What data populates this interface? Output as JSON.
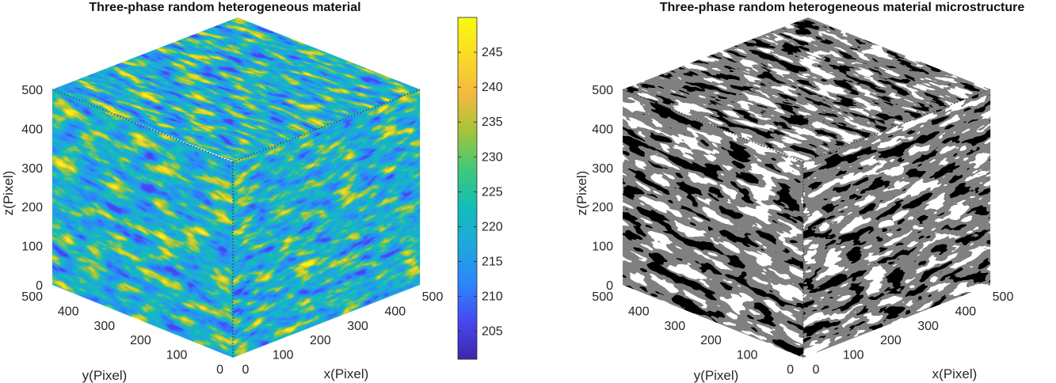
{
  "chart_data": [
    {
      "type": "heatmap",
      "subtype": "3d-volume-cube",
      "title": "Three-phase random heterogeneous material",
      "xlabel": "x(Pixel)",
      "ylabel": "y(Pixel)",
      "zlabel": "z(Pixel)",
      "xlim": [
        0,
        500
      ],
      "ylim": [
        0,
        500
      ],
      "zlim": [
        0,
        500
      ],
      "x_ticks": [
        0,
        100,
        200,
        300,
        400,
        500
      ],
      "y_ticks": [
        0,
        100,
        200,
        300,
        400,
        500
      ],
      "z_ticks": [
        0,
        100,
        200,
        300,
        400,
        500
      ],
      "colormap": "parula",
      "colorbar": {
        "range": [
          201,
          250
        ],
        "ticks": [
          205,
          210,
          215,
          220,
          225,
          230,
          235,
          240,
          245
        ],
        "colors": [
          "#3e26a8",
          "#4748f1",
          "#2c87fc",
          "#1fa7dd",
          "#12bdb9",
          "#40c878",
          "#a5c43a",
          "#f4ba3d",
          "#fadb25",
          "#f9fb0e"
        ]
      },
      "grid": false
    },
    {
      "type": "heatmap",
      "subtype": "3d-volume-cube",
      "title": "Three-phase random heterogeneous material microstructure",
      "xlabel": "x(Pixel)",
      "ylabel": "y(Pixel)",
      "zlabel": "z(Pixel)",
      "xlim": [
        0,
        500
      ],
      "ylim": [
        0,
        500
      ],
      "zlim": [
        0,
        500
      ],
      "x_ticks": [
        0,
        100,
        200,
        300,
        400,
        500
      ],
      "y_ticks": [
        0,
        100,
        200,
        300,
        400,
        500
      ],
      "z_ticks": [
        0,
        100,
        200,
        300,
        400,
        500
      ],
      "phases": 3,
      "phase_colors": [
        "#000000",
        "#808080",
        "#ffffff"
      ],
      "grid": false
    }
  ]
}
